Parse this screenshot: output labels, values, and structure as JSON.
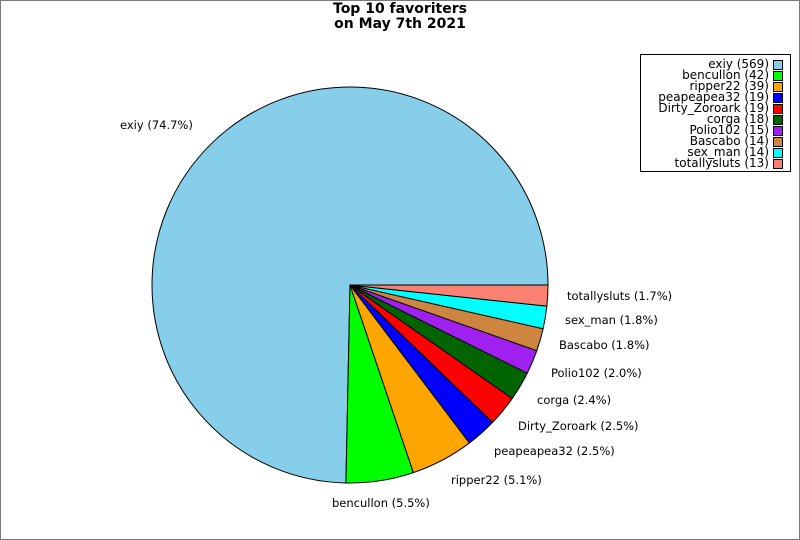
{
  "chart_data": {
    "type": "pie",
    "title": [
      "Top 10 favoriters",
      "on May 7th 2021"
    ],
    "legend_position": "top-right",
    "slices": [
      {
        "name": "exiy",
        "value": 569,
        "pct_label": "exiy (74.7%)",
        "legend_label": "exiy (569)",
        "color": "#87ceeb"
      },
      {
        "name": "bencullon",
        "value": 42,
        "pct_label": "bencullon (5.5%)",
        "legend_label": "bencullon (42)",
        "color": "#00ff00"
      },
      {
        "name": "ripper22",
        "value": 39,
        "pct_label": "ripper22 (5.1%)",
        "legend_label": "ripper22 (39)",
        "color": "#ffa500"
      },
      {
        "name": "peapeapea32",
        "value": 19,
        "pct_label": "peapeapea32 (2.5%)",
        "legend_label": "peapeapea32 (19)",
        "color": "#0000ff"
      },
      {
        "name": "Dirty_Zoroark",
        "value": 19,
        "pct_label": "Dirty_Zoroark (2.5%)",
        "legend_label": "Dirty_Zoroark (19)",
        "color": "#ff0000"
      },
      {
        "name": "corga",
        "value": 18,
        "pct_label": "corga (2.4%)",
        "legend_label": "corga (18)",
        "color": "#006400"
      },
      {
        "name": "Polio102",
        "value": 15,
        "pct_label": "Polio102 (2.0%)",
        "legend_label": "Polio102 (15)",
        "color": "#a020f0"
      },
      {
        "name": "Bascabo",
        "value": 14,
        "pct_label": "Bascabo (1.8%)",
        "legend_label": "Bascabo (14)",
        "color": "#cd853f"
      },
      {
        "name": "sex_man",
        "value": 14,
        "pct_label": "sex_man (1.8%)",
        "legend_label": "sex_man (14)",
        "color": "#00ffff"
      },
      {
        "name": "totallysluts",
        "value": 13,
        "pct_label": "totallysluts (1.7%)",
        "legend_label": "totallysluts (13)",
        "color": "#fa8072"
      }
    ]
  }
}
